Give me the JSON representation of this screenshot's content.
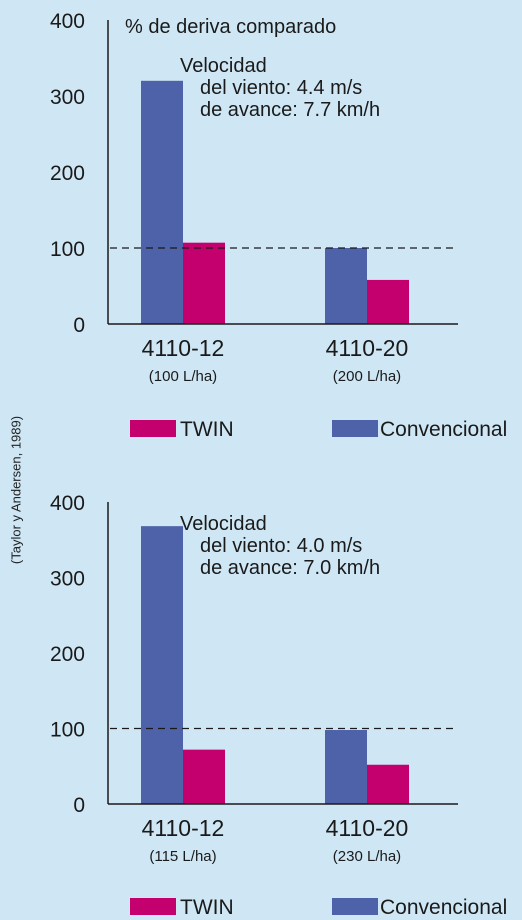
{
  "source_note": "(Taylor y Andersen, 1989)",
  "colors": {
    "twin": "#c4006e",
    "convencional": "#4d62a8",
    "background": "#cfe7f5",
    "axis": "#1a1a1a"
  },
  "chart_data": [
    {
      "type": "bar",
      "title": "% de deriva comparado",
      "annotation": [
        "Velocidad",
        "del viento: 4.4 m/s",
        "de avance: 7.7 km/h"
      ],
      "categories": [
        "4110-12",
        "4110-20"
      ],
      "category_sublabels": [
        "(100 L/ha)",
        "(200 L/ha)"
      ],
      "series": [
        {
          "name": "Convencional",
          "values": [
            320,
            100
          ]
        },
        {
          "name": "TWIN",
          "values": [
            107,
            58
          ]
        }
      ],
      "ylim": [
        0,
        400
      ],
      "yticks": [
        0,
        100,
        200,
        300,
        400
      ],
      "reference_line": 100,
      "legend": {
        "placement": "bottom",
        "labels": [
          "TWIN",
          "Convencional"
        ]
      },
      "grid": false
    },
    {
      "type": "bar",
      "title": "",
      "annotation": [
        "Velocidad",
        "del viento: 4.0 m/s",
        "de avance: 7.0 km/h"
      ],
      "categories": [
        "4110-12",
        "4110-20"
      ],
      "category_sublabels": [
        "(115 L/ha)",
        "(230 L/ha)"
      ],
      "series": [
        {
          "name": "Convencional",
          "values": [
            368,
            98
          ]
        },
        {
          "name": "TWIN",
          "values": [
            72,
            52
          ]
        }
      ],
      "ylim": [
        0,
        400
      ],
      "yticks": [
        0,
        100,
        200,
        300,
        400
      ],
      "reference_line": 100,
      "legend": {
        "placement": "bottom",
        "labels": [
          "TWIN",
          "Convencional"
        ]
      },
      "grid": false
    }
  ]
}
